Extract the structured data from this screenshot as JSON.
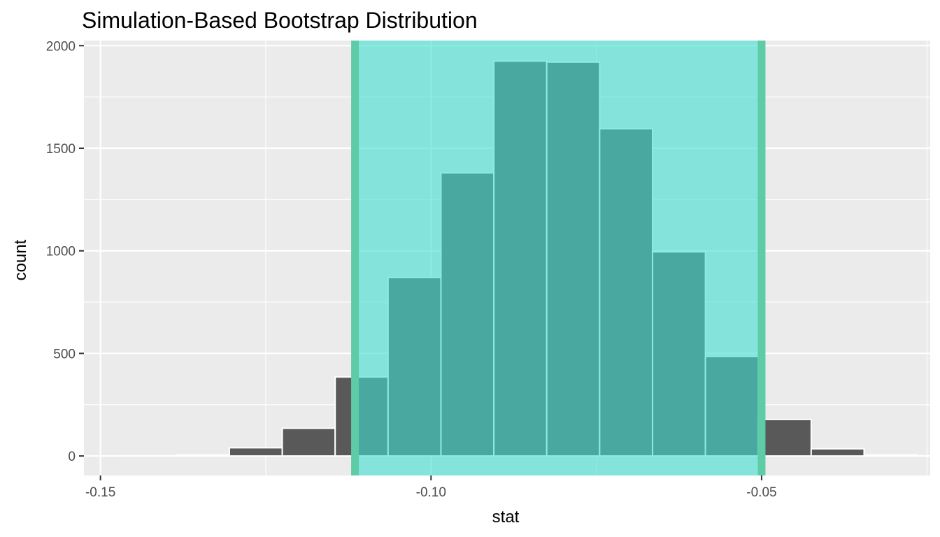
{
  "chart_data": {
    "type": "bar",
    "title": "Simulation-Based Bootstrap Distribution",
    "xlabel": "stat",
    "ylabel": "count",
    "xlim": [
      -0.1525,
      -0.0245
    ],
    "ylim": [
      -95,
      2025
    ],
    "x_ticks": [
      -0.15,
      -0.1,
      -0.05
    ],
    "x_tick_labels": [
      "-0.15",
      "-0.10",
      "-0.05"
    ],
    "y_ticks": [
      0,
      500,
      1000,
      1500,
      2000
    ],
    "y_tick_labels": [
      "0",
      "500",
      "1000",
      "1500",
      "2000"
    ],
    "bins": [
      {
        "x0": -0.1465,
        "x1": -0.1385,
        "count": 1
      },
      {
        "x0": -0.1385,
        "x1": -0.1305,
        "count": 5
      },
      {
        "x0": -0.1305,
        "x1": -0.1225,
        "count": 40
      },
      {
        "x0": -0.1225,
        "x1": -0.1145,
        "count": 135
      },
      {
        "x0": -0.1145,
        "x1": -0.1065,
        "count": 385
      },
      {
        "x0": -0.1065,
        "x1": -0.0985,
        "count": 870
      },
      {
        "x0": -0.0985,
        "x1": -0.0905,
        "count": 1380
      },
      {
        "x0": -0.0905,
        "x1": -0.0825,
        "count": 1925
      },
      {
        "x0": -0.0825,
        "x1": -0.0745,
        "count": 1920
      },
      {
        "x0": -0.0745,
        "x1": -0.0665,
        "count": 1595
      },
      {
        "x0": -0.0665,
        "x1": -0.0585,
        "count": 995
      },
      {
        "x0": -0.0585,
        "x1": -0.0505,
        "count": 485
      },
      {
        "x0": -0.0505,
        "x1": -0.0425,
        "count": 178
      },
      {
        "x0": -0.0425,
        "x1": -0.0345,
        "count": 35
      },
      {
        "x0": -0.0345,
        "x1": -0.0265,
        "count": 5
      }
    ],
    "shaded_interval": {
      "lower": -0.1115,
      "upper": -0.05
    },
    "grid": true,
    "colors": {
      "panel_background": "#ebebeb",
      "gridline": "#ffffff",
      "bar_fill": "#595959",
      "bar_outline": "#ffffff",
      "interval_fill": "#40e0d0",
      "interval_line": "#5dcca7",
      "tick": "#333333"
    }
  }
}
